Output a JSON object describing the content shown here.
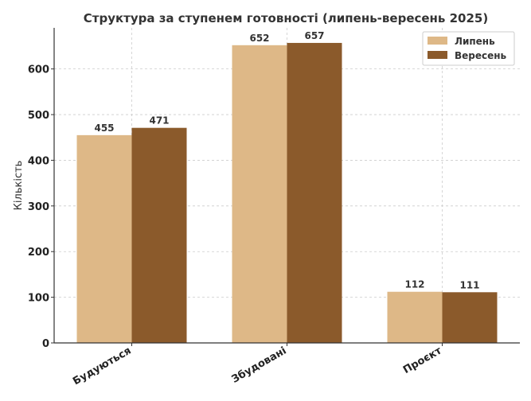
{
  "chart_data": {
    "type": "bar",
    "title": "Структура за ступенем готовності (липень-вересень 2025)",
    "xlabel": "",
    "ylabel": "Кількість",
    "categories": [
      "Будуються",
      "Збудовані",
      "Проєкт"
    ],
    "series": [
      {
        "name": "Липень",
        "values": [
          455,
          652,
          112
        ],
        "color": "#DEB887"
      },
      {
        "name": "Вересень",
        "values": [
          471,
          657,
          111
        ],
        "color": "#8B5A2B"
      }
    ],
    "yticks": [
      0,
      100,
      200,
      300,
      400,
      500,
      600
    ],
    "ylim": [
      0,
      690
    ],
    "grid": true,
    "legend_position": "top-right"
  }
}
